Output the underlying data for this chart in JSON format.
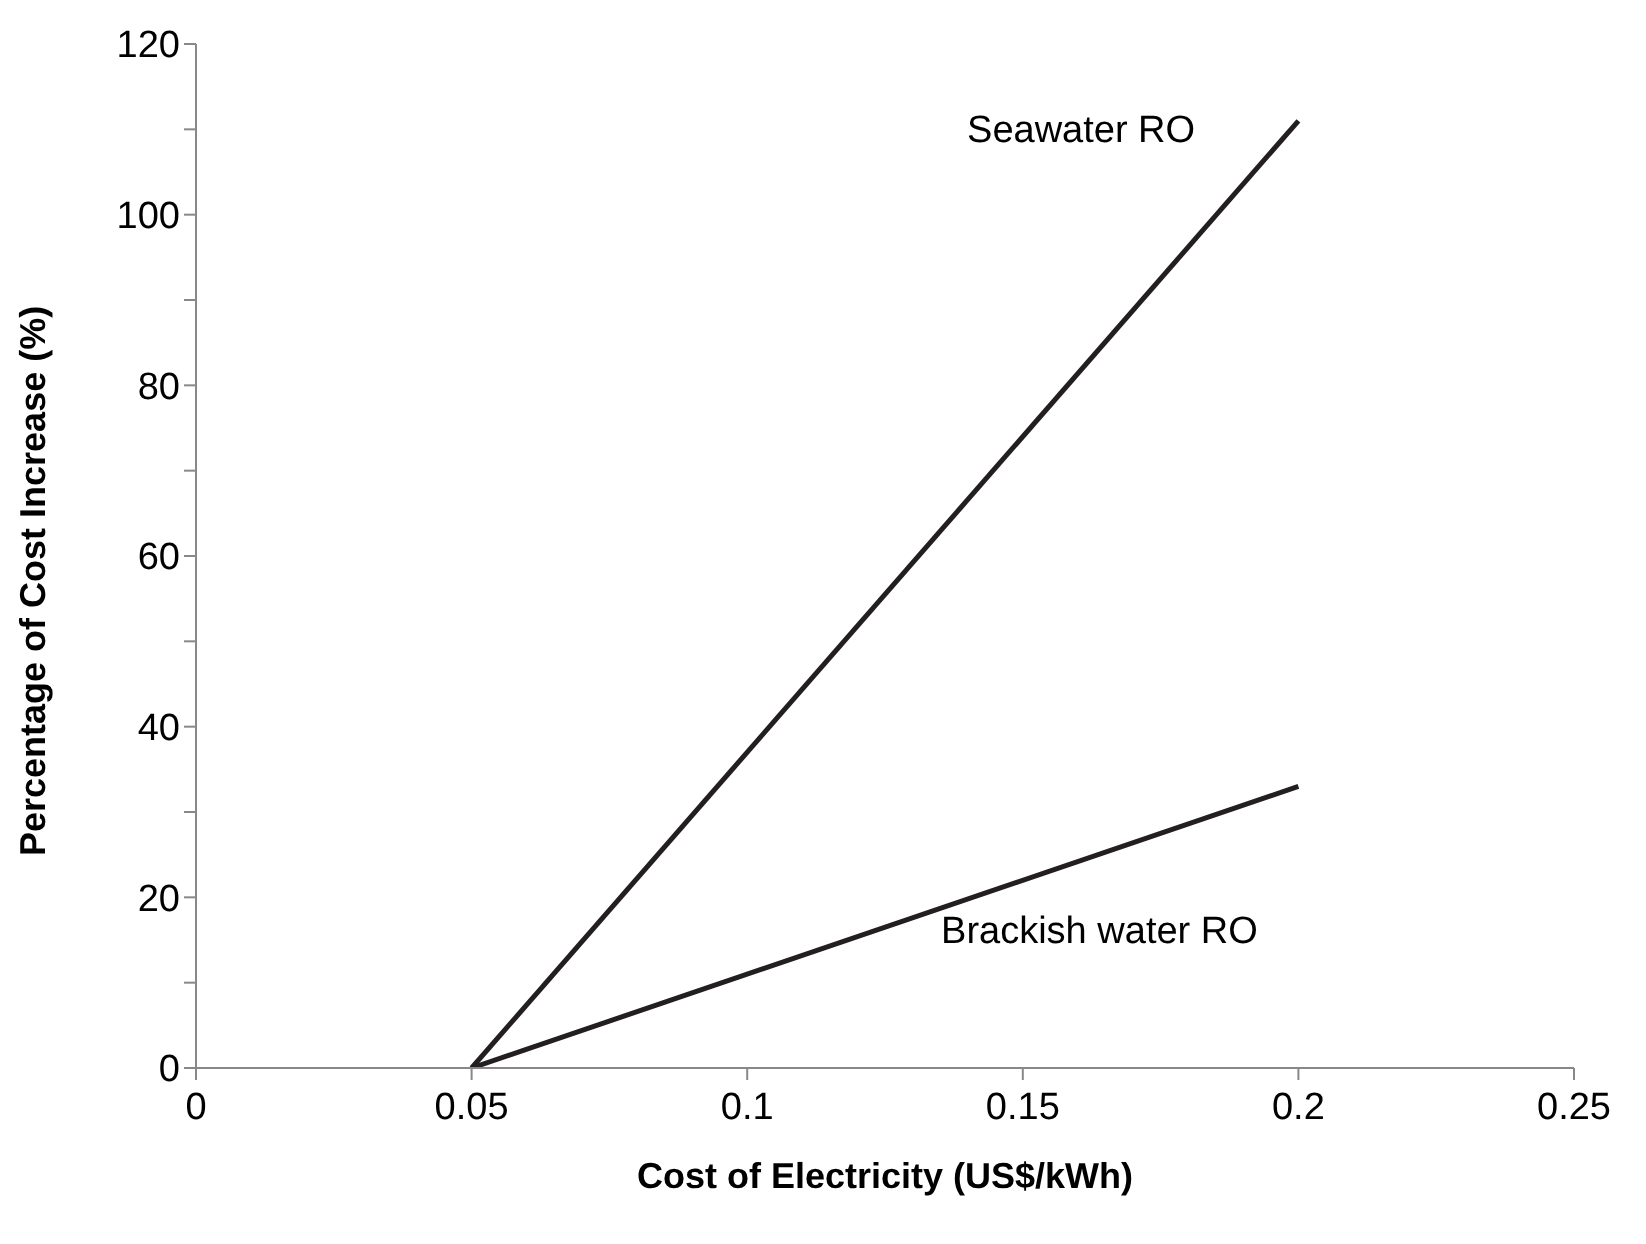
{
  "chart_data": {
    "type": "line",
    "xlabel": "Cost of Electricity (US$/kWh)",
    "ylabel": "Percentage of Cost Increase (%)",
    "x": [
      0.05,
      0.2
    ],
    "series": [
      {
        "name": "Seawater RO",
        "color": "#231f20",
        "values": [
          0,
          111
        ]
      },
      {
        "name": "Brackish water RO",
        "color": "#231f20",
        "values": [
          0,
          33
        ]
      }
    ],
    "xlim": [
      0,
      0.25
    ],
    "xticks": [
      0,
      0.05,
      0.1,
      0.15,
      0.2,
      0.25
    ],
    "ylim": [
      0,
      120
    ],
    "yticks": [
      0,
      {
        "value": 10,
        "label": null
      },
      20,
      {
        "value": 30,
        "label": null
      },
      40,
      {
        "value": 50,
        "label": null
      },
      60,
      {
        "value": 70,
        "label": null
      },
      80,
      {
        "value": 90,
        "label": null
      },
      100,
      {
        "value": 110,
        "label": null
      },
      120
    ],
    "grid": false,
    "legend": false,
    "marker": "none",
    "line_style": "solid"
  }
}
